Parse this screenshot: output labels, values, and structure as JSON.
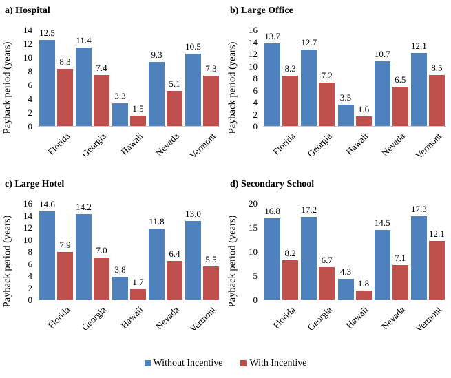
{
  "colors": {
    "without_incentive": "#4F81BD",
    "with_incentive": "#C0504D",
    "axis_line": "#c9c9c9",
    "text": "#000000",
    "background": "#ffffff"
  },
  "legend": {
    "items": [
      {
        "label": "Without Incentive",
        "color": "#4F81BD"
      },
      {
        "label": "With Incentive",
        "color": "#C0504D"
      }
    ],
    "position": "bottom-center-shared"
  },
  "chart_data": [
    {
      "id": "hospital",
      "type": "bar",
      "title": "a) Hospital",
      "xlabel": "",
      "ylabel": "Payback period (years)",
      "categories": [
        "Florida",
        "Georgia",
        "Hawaii",
        "Nevada",
        "Vermont"
      ],
      "series": [
        {
          "name": "Without Incentive",
          "color": "#4F81BD",
          "values": [
            12.5,
            11.4,
            3.3,
            9.3,
            10.5
          ]
        },
        {
          "name": "With Incentive",
          "color": "#C0504D",
          "values": [
            8.3,
            7.4,
            1.5,
            5.1,
            7.3
          ]
        }
      ],
      "ylim": [
        0,
        14
      ],
      "ytick_step": 2,
      "grid": false,
      "data_labels": true,
      "label_decimals": 1
    },
    {
      "id": "large-office",
      "type": "bar",
      "title": "b) Large Office",
      "xlabel": "",
      "ylabel": "Payback period (years)",
      "categories": [
        "Florida",
        "Georgia",
        "Hawaii",
        "Nevada",
        "Vermont"
      ],
      "series": [
        {
          "name": "Without Incentive",
          "color": "#4F81BD",
          "values": [
            13.7,
            12.7,
            3.5,
            10.7,
            12.1
          ]
        },
        {
          "name": "With Incentive",
          "color": "#C0504D",
          "values": [
            8.3,
            7.2,
            1.6,
            6.5,
            8.5
          ]
        }
      ],
      "ylim": [
        0,
        16
      ],
      "ytick_step": 2,
      "grid": false,
      "data_labels": true,
      "label_decimals": 1
    },
    {
      "id": "large-hotel",
      "type": "bar",
      "title": "c) Large Hotel",
      "xlabel": "",
      "ylabel": "Payback period (years)",
      "categories": [
        "Florida",
        "Georgia",
        "Hawaii",
        "Nevada",
        "Vermont"
      ],
      "series": [
        {
          "name": "Without Incentive",
          "color": "#4F81BD",
          "values": [
            14.6,
            14.2,
            3.8,
            11.8,
            13.0
          ]
        },
        {
          "name": "With Incentive",
          "color": "#C0504D",
          "values": [
            7.9,
            7.0,
            1.7,
            6.4,
            5.5
          ]
        }
      ],
      "ylim": [
        0,
        16
      ],
      "ytick_step": 2,
      "grid": false,
      "data_labels": true,
      "label_decimals": 1
    },
    {
      "id": "secondary-school",
      "type": "bar",
      "title": "d) Secondary School",
      "xlabel": "",
      "ylabel": "Payback period (years)",
      "categories": [
        "Florida",
        "Georgia",
        "Hawaii",
        "Nevada",
        "Vermont"
      ],
      "series": [
        {
          "name": "Without Incentive",
          "color": "#4F81BD",
          "values": [
            16.8,
            17.2,
            4.3,
            14.5,
            17.3
          ]
        },
        {
          "name": "With Incentive",
          "color": "#C0504D",
          "values": [
            8.2,
            6.7,
            1.8,
            7.1,
            12.1
          ]
        }
      ],
      "ylim": [
        0,
        20
      ],
      "ytick_step": 5,
      "grid": false,
      "data_labels": true,
      "label_decimals": 1
    }
  ]
}
